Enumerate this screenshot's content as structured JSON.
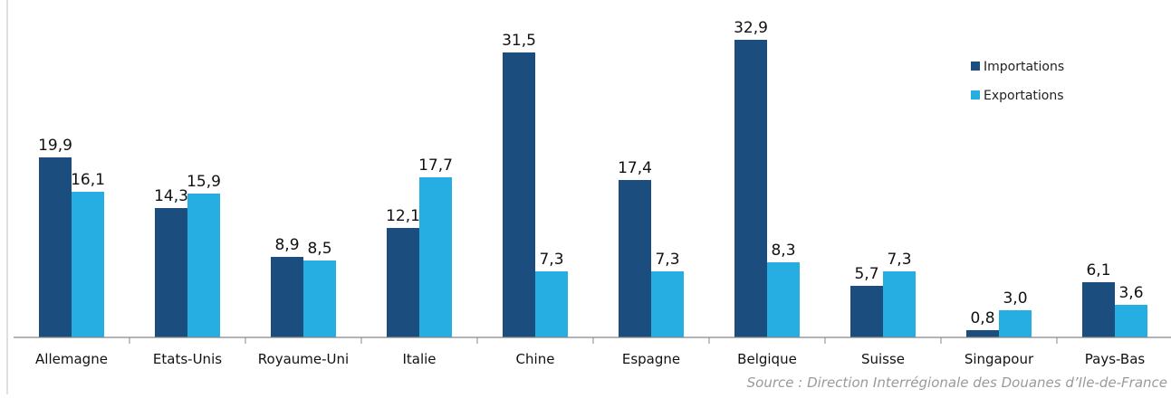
{
  "chart_data": {
    "type": "bar",
    "categories": [
      "Allemagne",
      "Etats-Unis",
      "Royaume-Uni",
      "Italie",
      "Chine",
      "Espagne",
      "Belgique",
      "Suisse",
      "Singapour",
      "Pays-Bas"
    ],
    "series": [
      {
        "name": "Importations",
        "values": [
          19.9,
          14.3,
          8.9,
          12.1,
          31.5,
          17.4,
          32.9,
          5.7,
          0.8,
          6.1
        ],
        "color": "#1b4e7e"
      },
      {
        "name": "Exportations",
        "values": [
          16.1,
          15.9,
          8.5,
          17.7,
          7.3,
          7.3,
          8.3,
          7.3,
          3.0,
          3.6
        ],
        "color": "#26aee3"
      }
    ],
    "data_labels": {
      "Importations": [
        "19,9",
        "14,3",
        "8,9",
        "12,1",
        "31,5",
        "17,4",
        "32,9",
        "5,7",
        "0,8",
        "6,1"
      ],
      "Exportations": [
        "16,1",
        "15,9",
        "8,5",
        "17,7",
        "7,3",
        "7,3",
        "8,3",
        "7,3",
        "3,0",
        "3,6"
      ]
    },
    "ylim": [
      0,
      36
    ],
    "grid": false,
    "legend_position": "top-right",
    "source": "Source : Direction Interrégionale des Douanes d’Ile-de-France"
  }
}
